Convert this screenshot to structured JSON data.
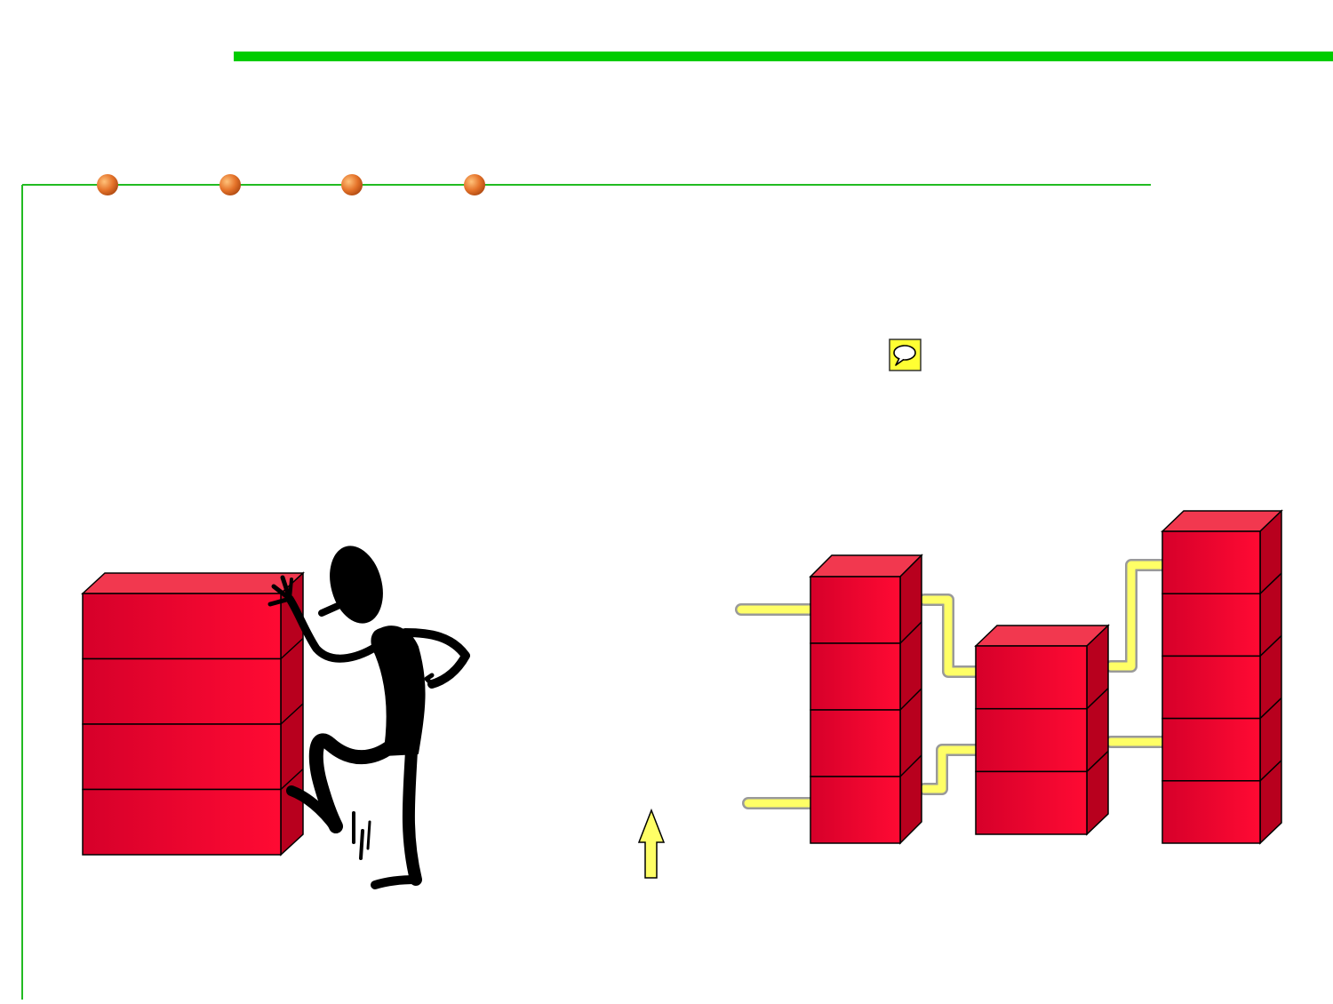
{
  "colors": {
    "top_bar": "#00cc00",
    "frame_line": "#22bb22",
    "bullet": "#e5732a",
    "block_front": "#ef0a30",
    "block_top": "#f2384f",
    "block_side": "#b8001e",
    "connector": "#ffff66",
    "connector_edge": "#9a9a9a",
    "note_icon": "#ffff33",
    "arrow": "#ffff66"
  },
  "icons": {
    "note": "speech-bubble-icon",
    "figure": "pushing-stick-figure",
    "arrow": "up-arrow-icon"
  },
  "diagram": {
    "bullet_count": 4,
    "left_stack_layers": 4,
    "right_stacks": [
      {
        "layers": 4
      },
      {
        "layers": 3
      },
      {
        "layers": 5
      }
    ]
  }
}
